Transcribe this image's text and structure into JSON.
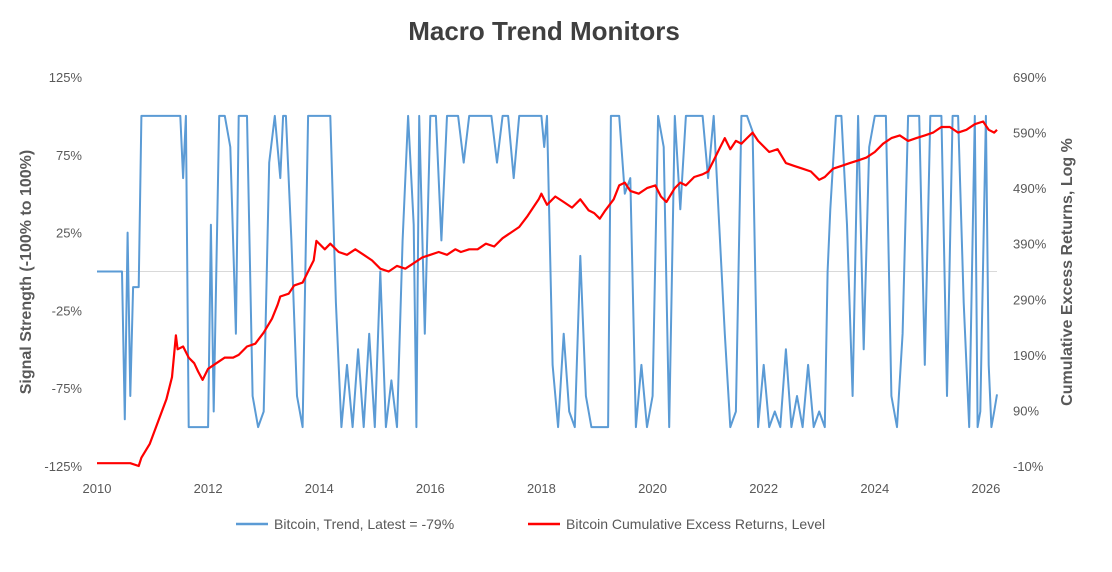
{
  "chart_data": {
    "type": "line",
    "title": "Macro Trend Monitors",
    "ylabel_left": "Signal Strength (-100% to 100%)",
    "ylabel_right": "Cumulative Excess Returns, Log %",
    "xlim": [
      2010,
      2026.2
    ],
    "ylim_left": [
      -125,
      125
    ],
    "ylim_right": [
      -10,
      690
    ],
    "left_ticks": [
      "125%",
      "75%",
      "25%",
      "-25%",
      "-75%",
      "-125%"
    ],
    "left_tick_values": [
      125,
      75,
      25,
      -25,
      -75,
      -125
    ],
    "right_ticks": [
      "690%",
      "590%",
      "490%",
      "390%",
      "290%",
      "190%",
      "90%",
      "-10%"
    ],
    "right_tick_values": [
      690,
      590,
      490,
      390,
      290,
      190,
      90,
      -10
    ],
    "x_ticks": [
      "2010",
      "2012",
      "2014",
      "2016",
      "2018",
      "2020",
      "2022",
      "2024",
      "2026"
    ],
    "x_tick_values": [
      2010,
      2012,
      2014,
      2016,
      2018,
      2020,
      2022,
      2024,
      2026
    ],
    "zero_line": 0,
    "series": [
      {
        "name": "Bitcoin, Trend, Latest = -79%",
        "axis": "left",
        "color": "#5b9bd5",
        "x": [
          2010.0,
          2010.45,
          2010.5,
          2010.55,
          2010.6,
          2010.65,
          2010.75,
          2010.8,
          2010.85,
          2011.0,
          2011.5,
          2011.55,
          2011.6,
          2011.65,
          2011.7,
          2011.75,
          2011.8,
          2011.9,
          2012.0,
          2012.05,
          2012.1,
          2012.2,
          2012.3,
          2012.4,
          2012.5,
          2012.55,
          2012.6,
          2012.7,
          2012.8,
          2012.9,
          2013.0,
          2013.1,
          2013.2,
          2013.3,
          2013.35,
          2013.4,
          2013.5,
          2013.6,
          2013.7,
          2013.8,
          2013.85,
          2013.9,
          2014.0,
          2014.1,
          2014.2,
          2014.3,
          2014.4,
          2014.5,
          2014.6,
          2014.7,
          2014.8,
          2014.9,
          2015.0,
          2015.1,
          2015.2,
          2015.3,
          2015.4,
          2015.5,
          2015.6,
          2015.7,
          2015.75,
          2015.8,
          2015.9,
          2016.0,
          2016.1,
          2016.2,
          2016.3,
          2016.4,
          2016.5,
          2016.6,
          2016.7,
          2016.8,
          2016.9,
          2017.0,
          2017.1,
          2017.2,
          2017.3,
          2017.4,
          2017.5,
          2017.6,
          2017.7,
          2017.8,
          2017.9,
          2018.0,
          2018.05,
          2018.1,
          2018.2,
          2018.3,
          2018.4,
          2018.5,
          2018.6,
          2018.7,
          2018.8,
          2018.9,
          2019.0,
          2019.1,
          2019.2,
          2019.25,
          2019.3,
          2019.4,
          2019.5,
          2019.6,
          2019.7,
          2019.8,
          2019.9,
          2020.0,
          2020.1,
          2020.2,
          2020.3,
          2020.4,
          2020.5,
          2020.6,
          2020.7,
          2020.8,
          2020.9,
          2021.0,
          2021.1,
          2021.2,
          2021.3,
          2021.4,
          2021.5,
          2021.6,
          2021.7,
          2021.8,
          2021.9,
          2022.0,
          2022.1,
          2022.2,
          2022.3,
          2022.4,
          2022.5,
          2022.6,
          2022.7,
          2022.8,
          2022.9,
          2023.0,
          2023.1,
          2023.15,
          2023.2,
          2023.3,
          2023.4,
          2023.5,
          2023.6,
          2023.7,
          2023.8,
          2023.9,
          2024.0,
          2024.1,
          2024.2,
          2024.3,
          2024.4,
          2024.5,
          2024.6,
          2024.7,
          2024.8,
          2024.9,
          2025.0,
          2025.1,
          2025.2,
          2025.3,
          2025.4,
          2025.5,
          2025.6,
          2025.7,
          2025.8,
          2025.85,
          2025.9,
          2026.0,
          2026.05,
          2026.1,
          2026.15,
          2026.2
        ],
        "values": [
          0,
          0,
          -95,
          25,
          -80,
          -10,
          -10,
          100,
          100,
          100,
          100,
          60,
          100,
          -100,
          -100,
          -100,
          -100,
          -100,
          -100,
          30,
          -90,
          100,
          100,
          80,
          -40,
          100,
          100,
          100,
          -80,
          -100,
          -90,
          70,
          100,
          60,
          100,
          100,
          20,
          -80,
          -100,
          100,
          100,
          100,
          100,
          100,
          100,
          -20,
          -100,
          -60,
          -100,
          -50,
          -100,
          -40,
          -100,
          0,
          -100,
          -70,
          -100,
          20,
          100,
          30,
          -100,
          100,
          -40,
          100,
          100,
          20,
          100,
          100,
          100,
          70,
          100,
          100,
          100,
          100,
          100,
          70,
          100,
          100,
          60,
          100,
          100,
          100,
          100,
          100,
          80,
          100,
          -60,
          -100,
          -40,
          -90,
          -100,
          10,
          -80,
          -100,
          -100,
          -100,
          -100,
          100,
          100,
          100,
          50,
          60,
          -100,
          -60,
          -100,
          -80,
          100,
          80,
          -100,
          100,
          40,
          100,
          100,
          100,
          100,
          60,
          100,
          30,
          -40,
          -100,
          -90,
          100,
          100,
          90,
          -100,
          -60,
          -100,
          -90,
          -100,
          -50,
          -100,
          -80,
          -100,
          -60,
          -100,
          -90,
          -100,
          0,
          40,
          100,
          100,
          30,
          -80,
          100,
          -50,
          80,
          100,
          100,
          100,
          -80,
          -100,
          -40,
          100,
          100,
          100,
          -60,
          100,
          100,
          100,
          -80,
          100,
          100,
          -20,
          -100,
          100,
          -100,
          -90,
          100,
          -60,
          -100,
          -90,
          -79
        ]
      },
      {
        "name": "Bitcoin Cumulative Excess Returns, Level",
        "axis": "right",
        "color": "#ff0000",
        "x": [
          2010.0,
          2010.3,
          2010.6,
          2010.75,
          2010.8,
          2010.95,
          2011.1,
          2011.25,
          2011.35,
          2011.42,
          2011.45,
          2011.55,
          2011.65,
          2011.75,
          2011.82,
          2011.9,
          2012.0,
          2012.15,
          2012.3,
          2012.45,
          2012.55,
          2012.7,
          2012.85,
          2013.0,
          2013.15,
          2013.25,
          2013.3,
          2013.45,
          2013.55,
          2013.7,
          2013.8,
          2013.9,
          2013.95,
          2014.1,
          2014.2,
          2014.35,
          2014.5,
          2014.65,
          2014.8,
          2014.95,
          2015.1,
          2015.25,
          2015.4,
          2015.55,
          2015.7,
          2015.85,
          2016.0,
          2016.15,
          2016.3,
          2016.45,
          2016.55,
          2016.7,
          2016.85,
          2017.0,
          2017.15,
          2017.3,
          2017.45,
          2017.6,
          2017.75,
          2017.85,
          2017.95,
          2018.0,
          2018.1,
          2018.25,
          2018.4,
          2018.55,
          2018.7,
          2018.85,
          2018.95,
          2019.05,
          2019.15,
          2019.3,
          2019.4,
          2019.5,
          2019.6,
          2019.75,
          2019.9,
          2020.05,
          2020.15,
          2020.25,
          2020.4,
          2020.5,
          2020.6,
          2020.75,
          2020.9,
          2021.0,
          2021.1,
          2021.2,
          2021.3,
          2021.4,
          2021.5,
          2021.6,
          2021.7,
          2021.8,
          2021.9,
          2022.0,
          2022.1,
          2022.25,
          2022.4,
          2022.55,
          2022.7,
          2022.85,
          2023.0,
          2023.1,
          2023.25,
          2023.4,
          2023.55,
          2023.7,
          2023.85,
          2024.0,
          2024.15,
          2024.3,
          2024.45,
          2024.6,
          2024.75,
          2024.9,
          2025.05,
          2025.2,
          2025.35,
          2025.5,
          2025.65,
          2025.8,
          2025.95,
          2026.05,
          2026.15,
          2026.2
        ],
        "values": [
          -5,
          -5,
          -5,
          -10,
          5,
          30,
          70,
          110,
          150,
          225,
          200,
          205,
          185,
          175,
          160,
          145,
          165,
          175,
          185,
          185,
          190,
          205,
          210,
          230,
          255,
          280,
          295,
          300,
          315,
          320,
          340,
          360,
          395,
          380,
          390,
          375,
          370,
          380,
          370,
          360,
          345,
          340,
          350,
          345,
          355,
          365,
          370,
          375,
          370,
          380,
          375,
          380,
          380,
          390,
          385,
          400,
          410,
          420,
          440,
          455,
          470,
          480,
          460,
          475,
          465,
          455,
          470,
          450,
          445,
          435,
          450,
          470,
          495,
          500,
          485,
          480,
          490,
          495,
          475,
          465,
          490,
          500,
          495,
          510,
          515,
          520,
          540,
          560,
          580,
          560,
          575,
          570,
          580,
          590,
          575,
          565,
          555,
          560,
          535,
          530,
          525,
          520,
          505,
          510,
          525,
          530,
          535,
          540,
          545,
          555,
          570,
          580,
          585,
          575,
          580,
          585,
          590,
          600,
          600,
          590,
          595,
          605,
          610,
          595,
          590,
          595
        ]
      }
    ],
    "legend": {
      "position": "bottom",
      "items": [
        "Bitcoin, Trend, Latest = -79%",
        "Bitcoin Cumulative Excess Returns, Level"
      ]
    }
  }
}
